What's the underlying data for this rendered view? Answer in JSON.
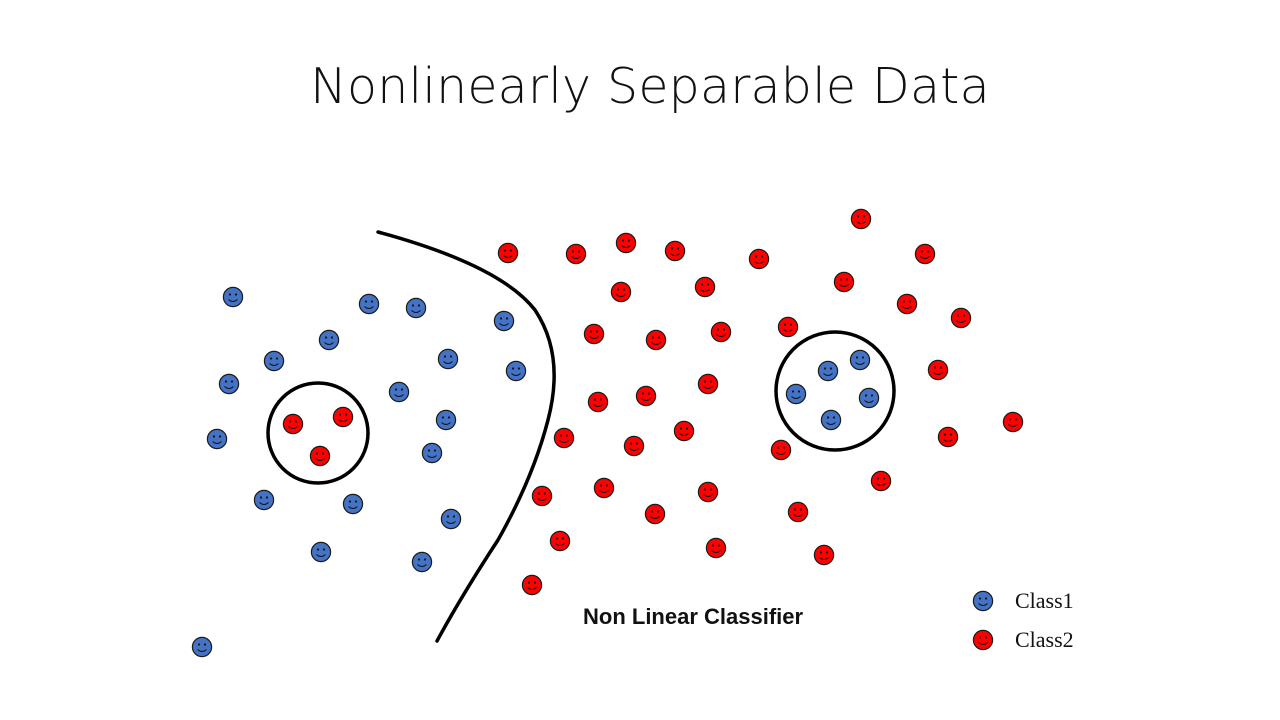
{
  "slide": {
    "title": "Nonlinearly Separable Data",
    "classifier_label": "Non Linear Classifier"
  },
  "legend": {
    "class1_label": "Class1",
    "class2_label": "Class2"
  },
  "colors": {
    "class1": "#4472c4",
    "class2": "#ff0000",
    "stroke": "#000000"
  }
}
